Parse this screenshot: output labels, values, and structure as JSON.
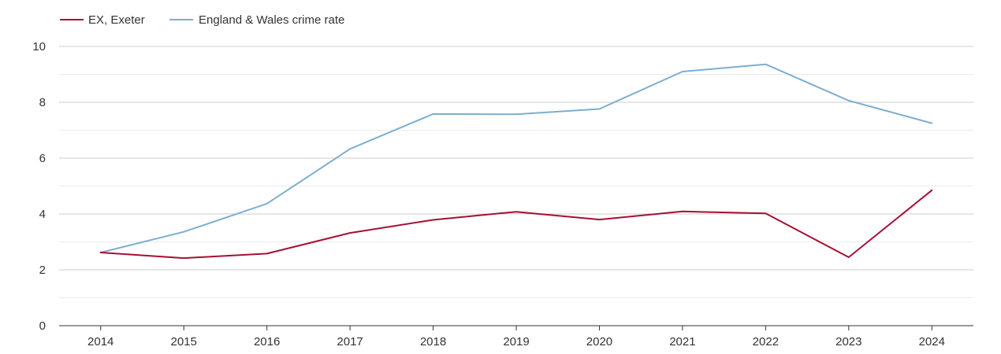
{
  "chart_data": {
    "type": "line",
    "title": "",
    "xlabel": "",
    "ylabel": "",
    "legend_position": "top-left",
    "x": [
      "2014",
      "2015",
      "2016",
      "2017",
      "2018",
      "2019",
      "2020",
      "2021",
      "2022",
      "2023",
      "2024"
    ],
    "yticks": [
      "0",
      "2",
      "4",
      "6",
      "8",
      "10"
    ],
    "ylim": [
      0,
      10
    ],
    "grid": true,
    "series": [
      {
        "name": "EX, Exeter",
        "color": "#a50f34",
        "values": [
          2.62,
          2.42,
          2.58,
          3.32,
          3.79,
          4.08,
          3.8,
          4.09,
          4.02,
          2.45,
          4.85
        ]
      },
      {
        "name": "England & Wales crime rate",
        "color": "#7bafd0",
        "values": [
          2.62,
          3.36,
          4.37,
          6.33,
          7.58,
          7.57,
          7.76,
          9.1,
          9.36,
          8.06,
          7.25
        ]
      }
    ]
  }
}
